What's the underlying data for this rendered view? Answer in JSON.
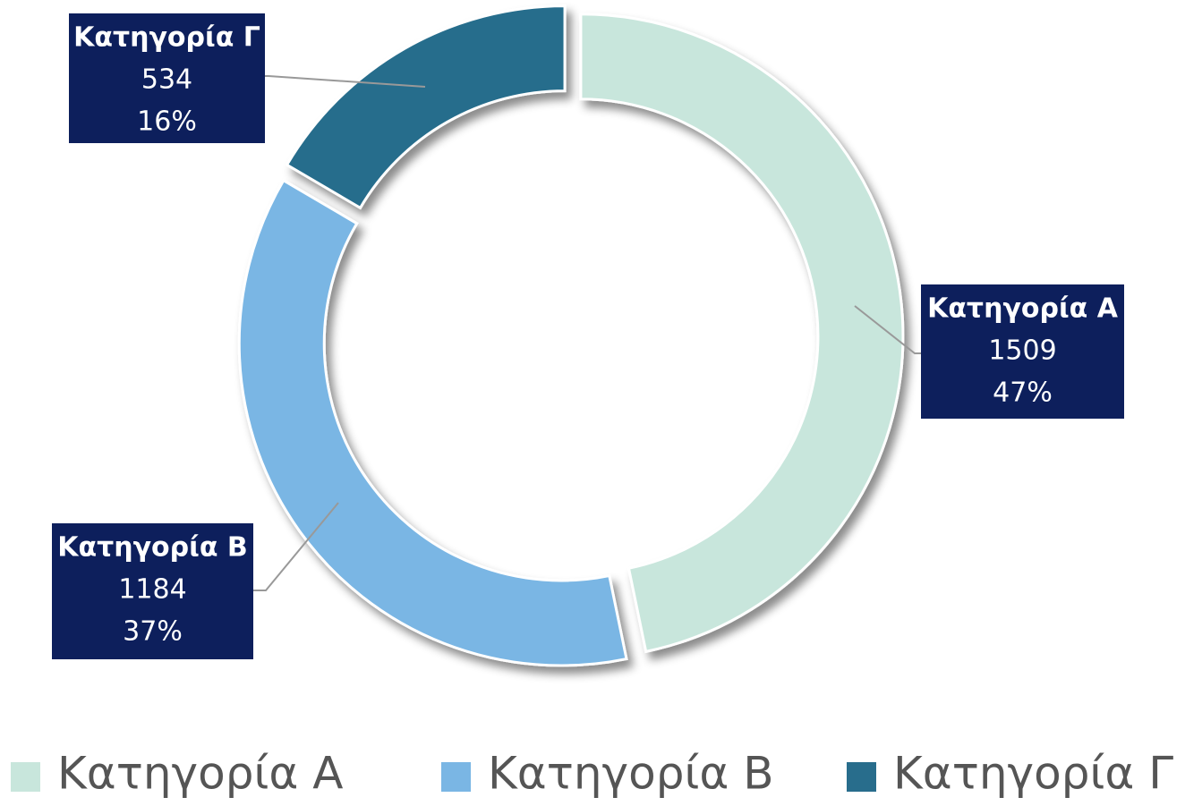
{
  "chart_data": {
    "type": "donut",
    "categories": [
      "Κατηγορία Α",
      "Κατηγορία Β",
      "Κατηγορία Γ"
    ],
    "values": [
      1509,
      1184,
      534
    ],
    "percent_labels": [
      "47%",
      "37%",
      "16%"
    ],
    "colors": [
      "#c8e6dc",
      "#7ab6e4",
      "#286d8c"
    ],
    "legend": "bottom"
  }
}
